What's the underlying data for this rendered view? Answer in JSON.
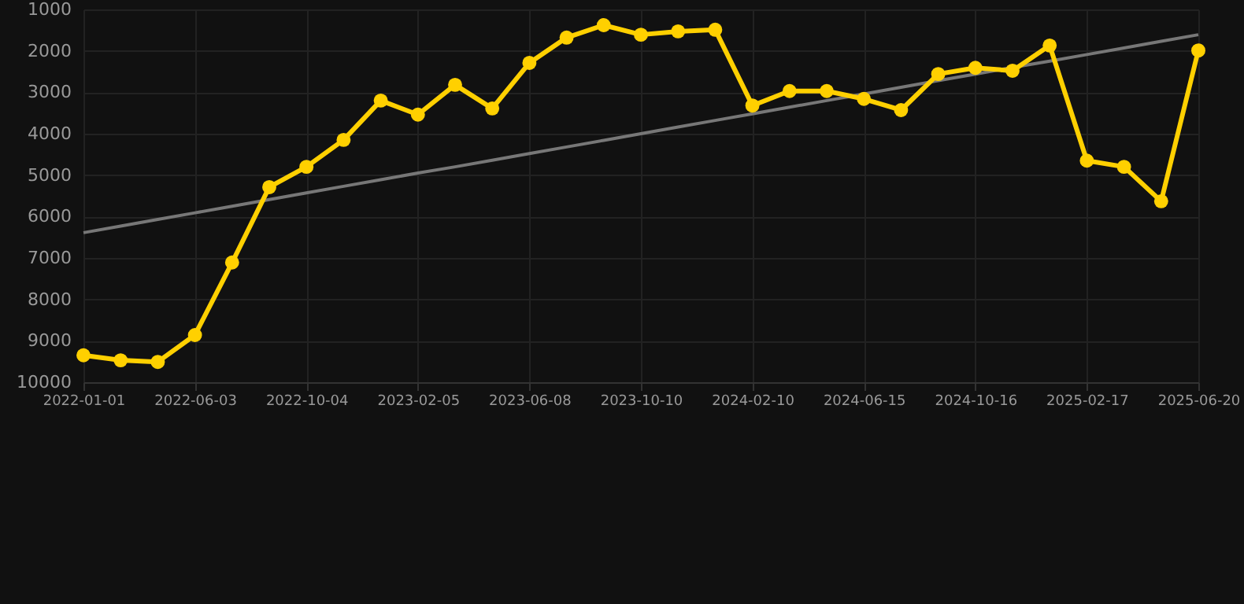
{
  "chart_data": {
    "type": "line",
    "categories": [
      "2022-01-01",
      null,
      null,
      "2022-06-03",
      null,
      null,
      "2022-10-04",
      null,
      null,
      "2023-02-05",
      null,
      null,
      "2023-06-08",
      null,
      null,
      "2023-10-10",
      null,
      null,
      "2024-02-10",
      null,
      null,
      "2024-06-15",
      null,
      null,
      "2024-10-16",
      null,
      null,
      "2025-02-17",
      null,
      null,
      "2025-06-20"
    ],
    "series": [
      {
        "color": "#ffd000",
        "marker": "circle",
        "values": [
          9350,
          9470,
          9510,
          8860,
          7110,
          5290,
          4800,
          4150,
          3200,
          3540,
          2820,
          3390,
          2290,
          1680,
          1380,
          1610,
          1530,
          1490,
          3320,
          2970,
          2970,
          3160,
          3430,
          2560,
          2410,
          2480,
          1870,
          4650,
          4800,
          5630,
          1990
        ]
      },
      {
        "type": "line",
        "color": "#777777",
        "marker": "none",
        "values": [
          6390,
          6230,
          6070,
          5910,
          5750,
          5590,
          5430,
          5270,
          5110,
          4950,
          4800,
          4640,
          4480,
          4320,
          4160,
          4000,
          3840,
          3680,
          3520,
          3360,
          3200,
          3040,
          2880,
          2720,
          2560,
          2400,
          2250,
          2090,
          1930,
          1770,
          1610
        ]
      }
    ],
    "ylim": [
      10000,
      1000
    ],
    "yticks": [
      1000,
      2000,
      3000,
      4000,
      5000,
      6000,
      7000,
      8000,
      9000,
      10000
    ],
    "grid": true
  }
}
